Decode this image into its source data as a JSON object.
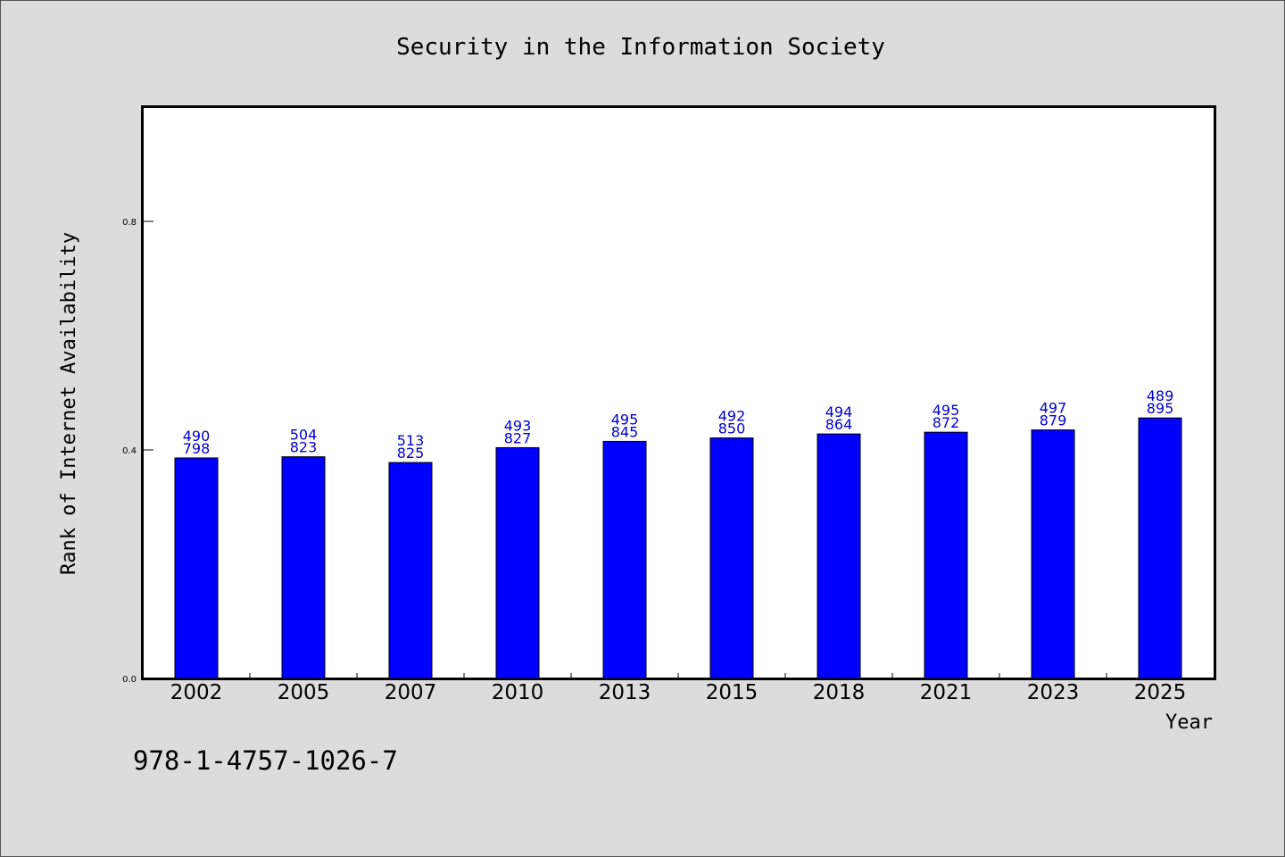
{
  "chart_data": {
    "type": "bar",
    "title": "Security in the Information Society",
    "xlabel": "Year",
    "ylabel": "Rank of Internet Availability",
    "categories": [
      "2002",
      "2005",
      "2007",
      "2010",
      "2013",
      "2015",
      "2018",
      "2021",
      "2023",
      "2025"
    ],
    "values": [
      0.386,
      0.388,
      0.378,
      0.404,
      0.415,
      0.421,
      0.428,
      0.431,
      0.435,
      0.456
    ],
    "data_labels_top": [
      "490",
      "504",
      "513",
      "493",
      "495",
      "492",
      "494",
      "495",
      "497",
      "489"
    ],
    "data_labels_bottom": [
      "798",
      "823",
      "825",
      "827",
      "845",
      "850",
      "864",
      "872",
      "879",
      "895"
    ],
    "ylim": [
      0,
      1.0
    ],
    "yticks": [
      0.0,
      0.4,
      0.8
    ],
    "ytick_labels": [
      "0.0",
      "0.4",
      "0.8"
    ],
    "grid": false,
    "bar_color": "#0000ff",
    "label_color": "#0000cc"
  },
  "footer": {
    "isbn": "978-1-4757-1026-7"
  }
}
